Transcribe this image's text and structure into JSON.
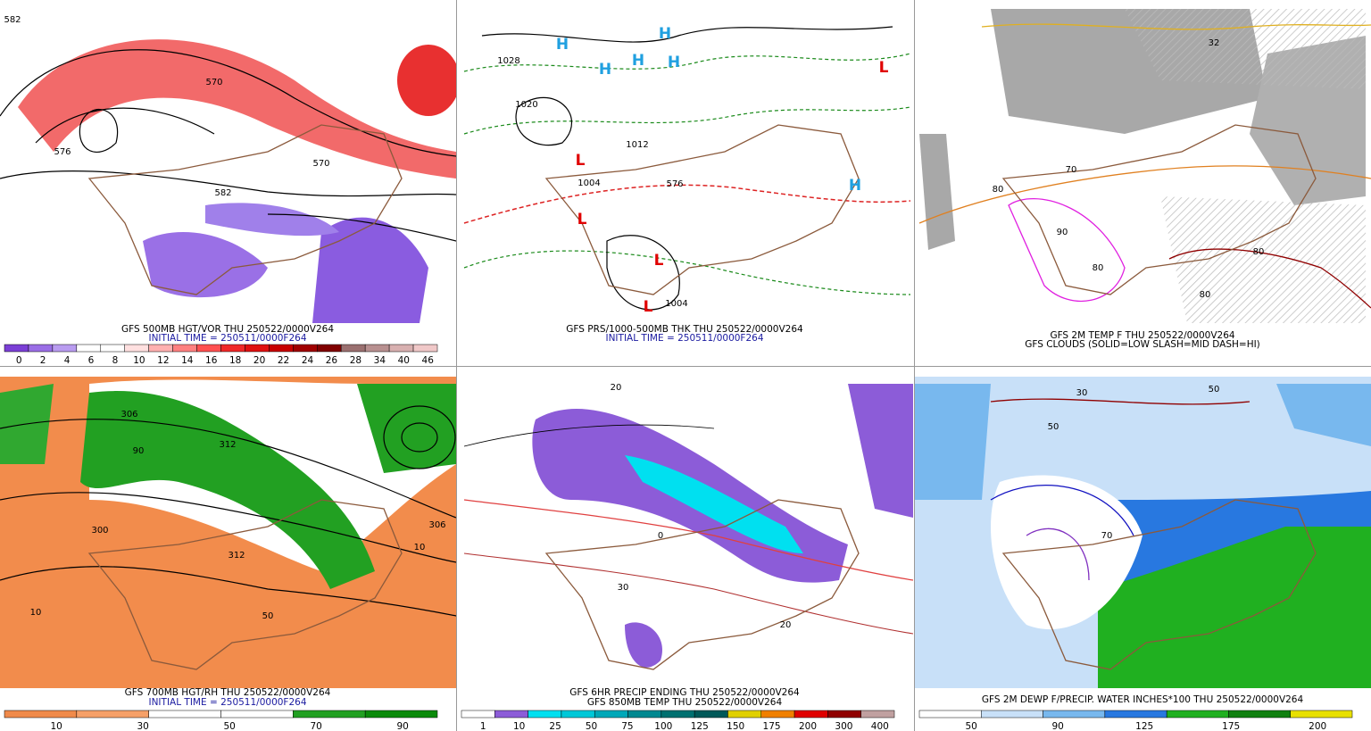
{
  "panels": [
    {
      "captions": [
        {
          "text": "GFS 500MB HGT/VOR THU 250522/0000V264",
          "color": "#000000"
        },
        {
          "text": "INITIAL TIME = 250511/0000F264",
          "color": "#1a1aa0"
        }
      ],
      "colorbar": {
        "labels": [
          0,
          2,
          4,
          6,
          8,
          10,
          12,
          14,
          16,
          18,
          20,
          22,
          24,
          26,
          28,
          34,
          40,
          46
        ],
        "colors": [
          "#7b3fd6",
          "#9a6ee6",
          "#b99cf0",
          "#ffffff",
          "#ffffff",
          "#ffe0e0",
          "#ffb0b0",
          "#ff8080",
          "#ff5050",
          "#f02828",
          "#e01010",
          "#c80000",
          "#a00000",
          "#800000",
          "#9a7070",
          "#b89090",
          "#d8b0b0",
          "#f0c8c8"
        ]
      },
      "map_labels": [
        "582",
        "570",
        "570",
        "582",
        "576"
      ]
    },
    {
      "captions": [
        {
          "text": "GFS PRS/1000-500MB THK THU 250522/0000V264",
          "color": "#000000"
        },
        {
          "text": "INITIAL TIME = 250511/0000F264",
          "color": "#1a1aa0"
        }
      ],
      "map_labels": [
        "H",
        "H",
        "H",
        "H",
        "H",
        "H",
        "L",
        "L",
        "L",
        "L",
        "L",
        "1028",
        "1020",
        "1004",
        "1012",
        "576",
        "1004"
      ]
    },
    {
      "captions": [
        {
          "text": "GFS 2M TEMP F THU 250522/0000V264",
          "color": "#000000"
        },
        {
          "text": "GFS CLOUDS (SOLID=LOW SLASH=MID DASH=HI)",
          "color": "#000000"
        }
      ],
      "map_labels": [
        "32",
        "80",
        "80",
        "90",
        "80",
        "70",
        "80"
      ]
    },
    {
      "captions": [
        {
          "text": "GFS 700MB HGT/RH THU 250522/0000V264",
          "color": "#000000"
        },
        {
          "text": "INITIAL TIME = 250511/0000F264",
          "color": "#1a1aa0"
        }
      ],
      "colorbar": {
        "labels": [
          10,
          30,
          50,
          70,
          90
        ],
        "colors": [
          "#f08a4a",
          "#f6a068",
          "#ffffff",
          "#ffffff",
          "#22a022",
          "#0a8a0a"
        ]
      },
      "map_labels": [
        "306",
        "312",
        "300",
        "312",
        "306",
        "10",
        "10",
        "50",
        "90"
      ]
    },
    {
      "captions": [
        {
          "text": "GFS 6HR PRECIP ENDING THU 250522/0000V264",
          "color": "#000000"
        },
        {
          "text": "GFS 850MB TEMP THU 250522/0000V264",
          "color": "#000000"
        }
      ],
      "colorbar": {
        "labels": [
          1,
          10,
          25,
          50,
          75,
          100,
          125,
          150,
          175,
          200,
          300,
          400
        ],
        "colors": [
          "#ffffff",
          "#8c5cd8",
          "#00e0f0",
          "#00c8d8",
          "#00a8b8",
          "#008890",
          "#007070",
          "#005858",
          "#e0d000",
          "#f08000",
          "#e00000",
          "#900000",
          "#c0a0a0"
        ]
      },
      "map_labels": [
        "20",
        "30",
        "0",
        "20"
      ]
    },
    {
      "captions": [
        {
          "text": "GFS 2M DEWP F/PRECIP. WATER INCHES*100 THU 250522/0000V264",
          "color": "#000000"
        }
      ],
      "colorbar": {
        "labels": [
          50,
          90,
          125,
          175,
          200
        ],
        "colors": [
          "#ffffff",
          "#c8e0f8",
          "#78b8ee",
          "#2878e0",
          "#20b020",
          "#108010",
          "#e8e000"
        ]
      },
      "map_labels": [
        "30",
        "50",
        "70",
        "50"
      ]
    }
  ]
}
